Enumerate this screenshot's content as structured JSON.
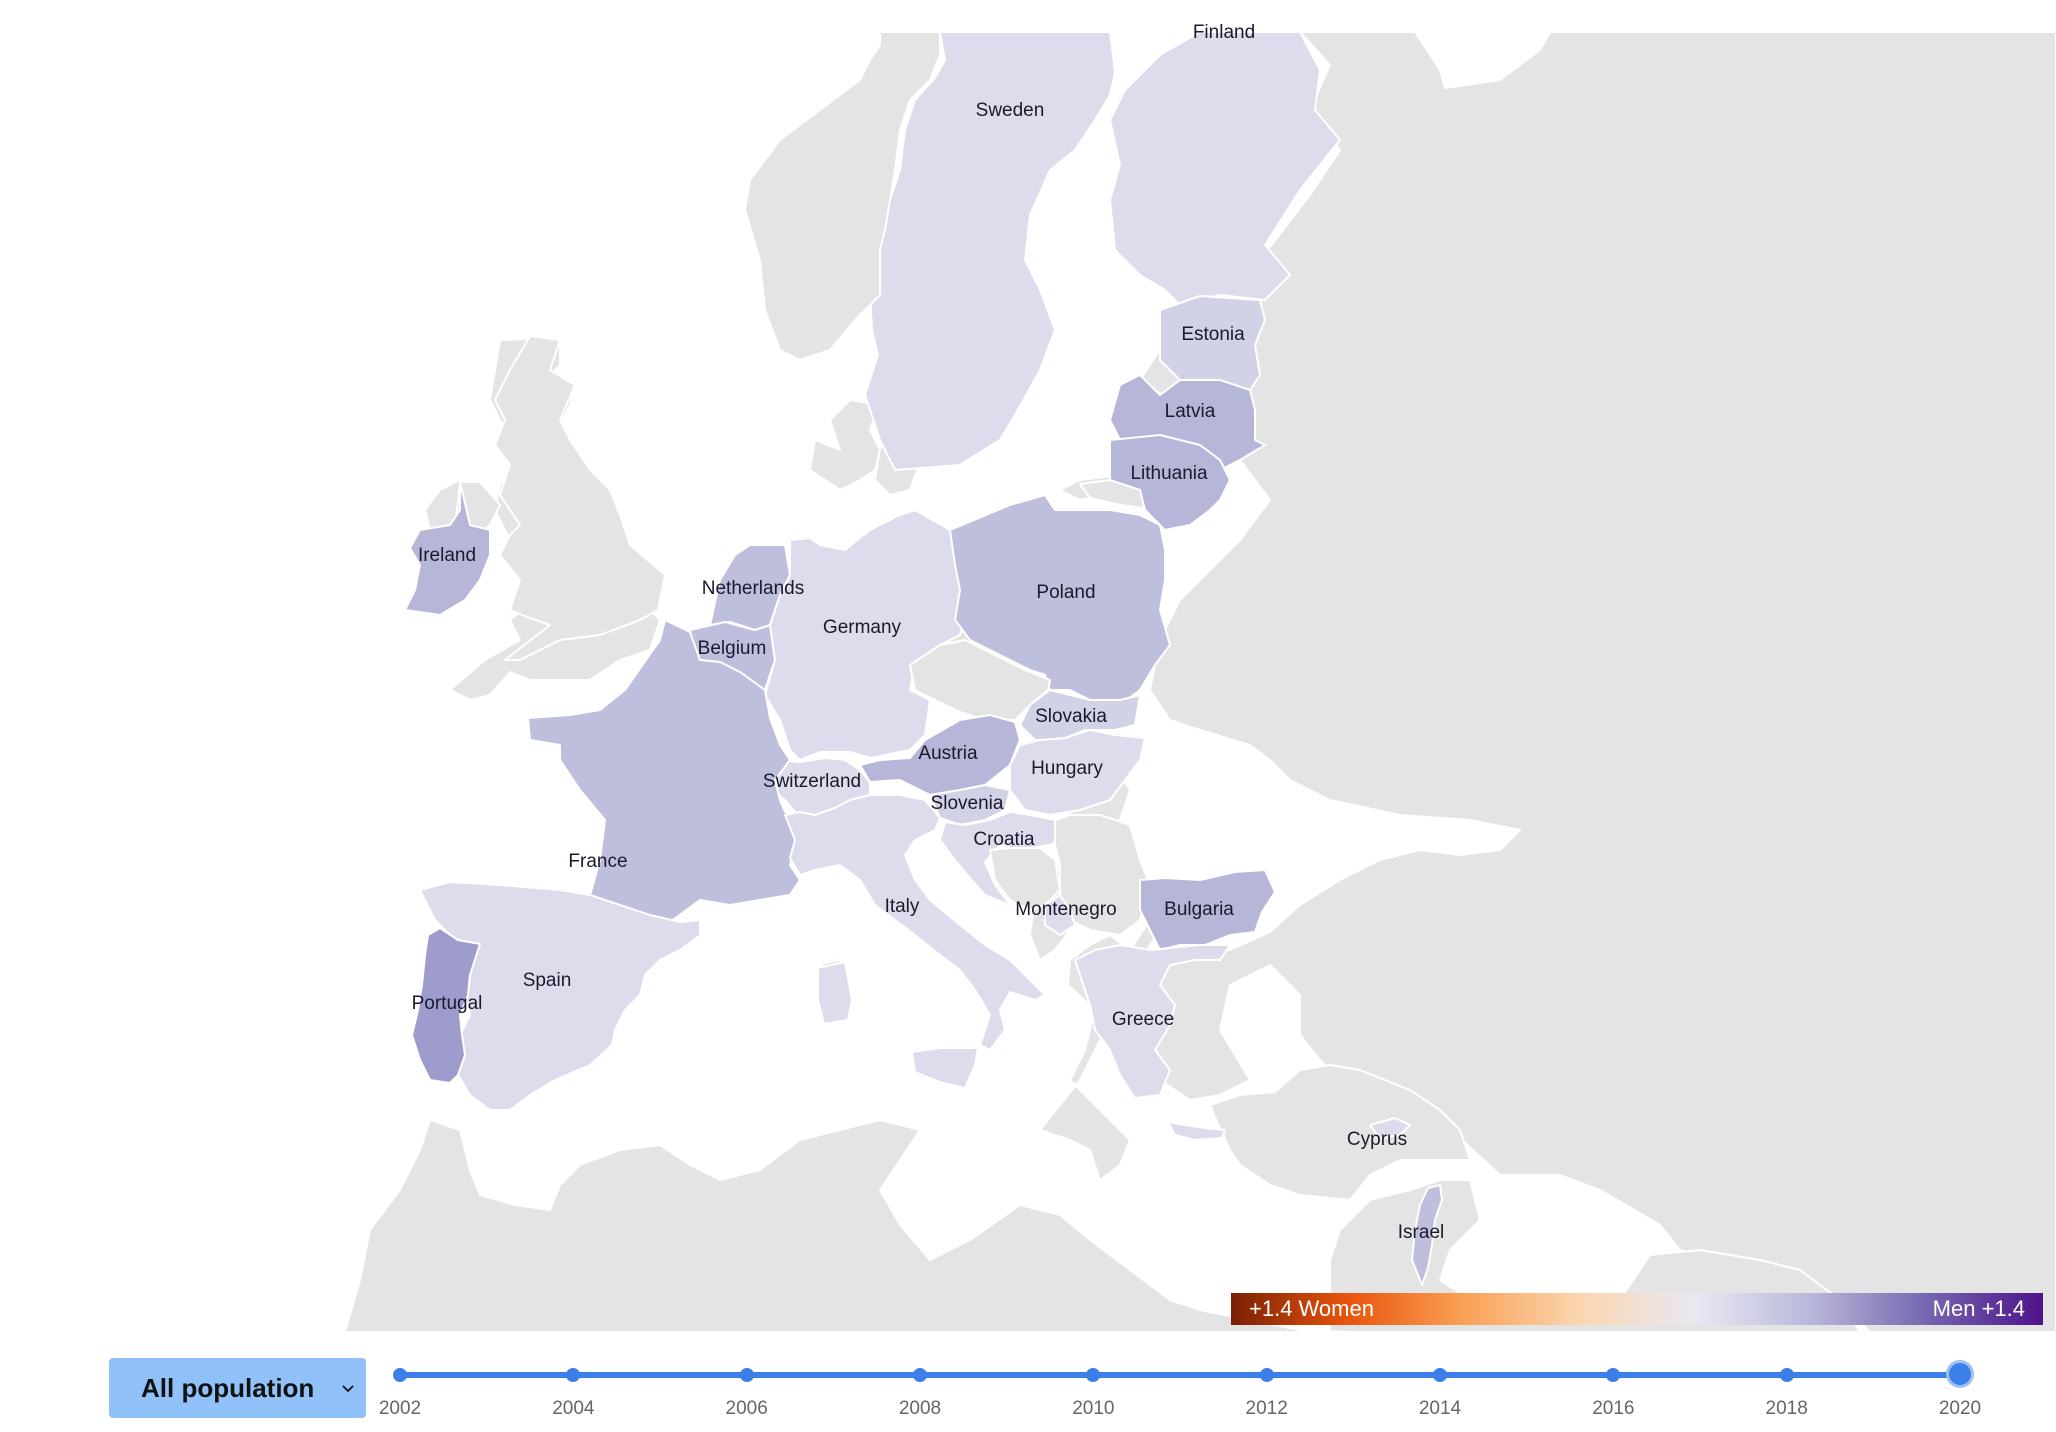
{
  "map": {
    "colors": {
      "sea": "#ffffff",
      "nodata": "#e4e4e4",
      "c1": "#dcdcec",
      "c2": "#d2d2e7",
      "c3": "#bebedd",
      "c4": "#b6b6d8",
      "c5": "#9e9ccc"
    },
    "countries": [
      {
        "name": "Sweden",
        "level": "c1"
      },
      {
        "name": "Finland",
        "level": "c1"
      },
      {
        "name": "Estonia",
        "level": "c2"
      },
      {
        "name": "Latvia",
        "level": "c4"
      },
      {
        "name": "Lithuania",
        "level": "c4"
      },
      {
        "name": "Ireland",
        "level": "c4"
      },
      {
        "name": "Netherlands",
        "level": "c3"
      },
      {
        "name": "Belgium",
        "level": "c3"
      },
      {
        "name": "Germany",
        "level": "c1"
      },
      {
        "name": "Poland",
        "level": "c3"
      },
      {
        "name": "Slovakia",
        "level": "c2"
      },
      {
        "name": "Austria",
        "level": "c4"
      },
      {
        "name": "Hungary",
        "level": "c1"
      },
      {
        "name": "Switzerland",
        "level": "c1"
      },
      {
        "name": "Slovenia",
        "level": "c2"
      },
      {
        "name": "Croatia",
        "level": "c1"
      },
      {
        "name": "France",
        "level": "c3"
      },
      {
        "name": "Italy",
        "level": "c1"
      },
      {
        "name": "Montenegro",
        "level": "c1"
      },
      {
        "name": "Bulgaria",
        "level": "c4"
      },
      {
        "name": "Spain",
        "level": "c1"
      },
      {
        "name": "Portugal",
        "level": "c5"
      },
      {
        "name": "Greece",
        "level": "c1"
      },
      {
        "name": "Cyprus",
        "level": "c1"
      },
      {
        "name": "Israel",
        "level": "c3"
      }
    ]
  },
  "legend": {
    "left_label": "+1.4 Women",
    "right_label": "Men +1.4",
    "gradient": [
      "#7a1f04",
      "#e8540c",
      "#f9a055",
      "#fbd6b0",
      "#e8e8f2",
      "#b9b8da",
      "#7666b0",
      "#4d128a"
    ]
  },
  "controls": {
    "population_select": {
      "value": "All population"
    },
    "timeline": {
      "years": [
        "2002",
        "2004",
        "2006",
        "2008",
        "2010",
        "2012",
        "2014",
        "2016",
        "2018",
        "2020"
      ],
      "selected": "2020",
      "accent": "#3d7fe8"
    }
  }
}
